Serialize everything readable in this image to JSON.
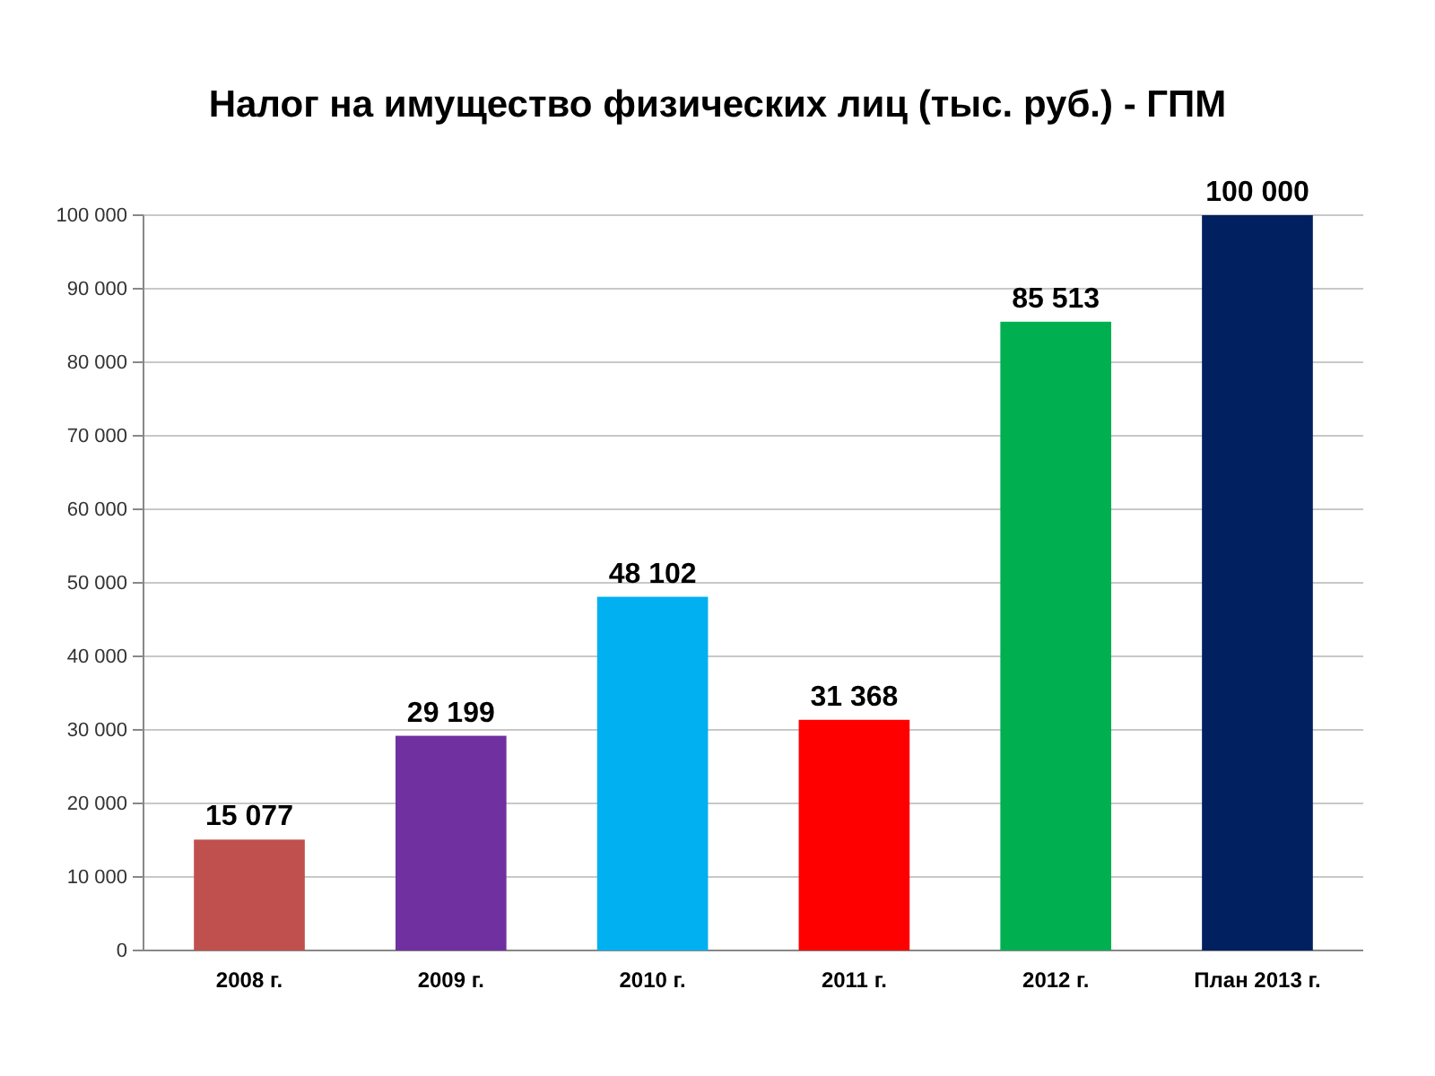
{
  "chart_data": {
    "type": "bar",
    "title": "Налог на имущество физических лиц (тыс. руб.) - ГПМ",
    "categories": [
      "2008 г.",
      "2009 г.",
      "2010 г.",
      "2011 г.",
      "2012 г.",
      "План 2013 г."
    ],
    "values": [
      15077,
      29199,
      48102,
      31368,
      85513,
      100000
    ],
    "colors": [
      "#c0504d",
      "#7030a0",
      "#00b0f0",
      "#ff0000",
      "#00b050",
      "#002060"
    ],
    "value_labels": [
      "15 077",
      "29 199",
      "48 102",
      "31 368",
      "85 513",
      "100 000"
    ],
    "ylim": [
      0,
      100000
    ],
    "yticks": [
      0,
      {
        "value": 10000,
        "label": "10 000"
      },
      {
        "value": 20000,
        "label": "20 000"
      },
      {
        "value": 30000,
        "label": "30 000"
      },
      {
        "value": 40000,
        "label": "40 000"
      },
      {
        "value": 50000,
        "label": "50 000"
      },
      {
        "value": 60000,
        "label": "60 000"
      },
      {
        "value": 70000,
        "label": "70 000"
      },
      {
        "value": 80000,
        "label": "80 000"
      },
      {
        "value": 90000,
        "label": "90 000"
      },
      {
        "value": 100000,
        "label": "100 000"
      }
    ],
    "grid": "y"
  }
}
